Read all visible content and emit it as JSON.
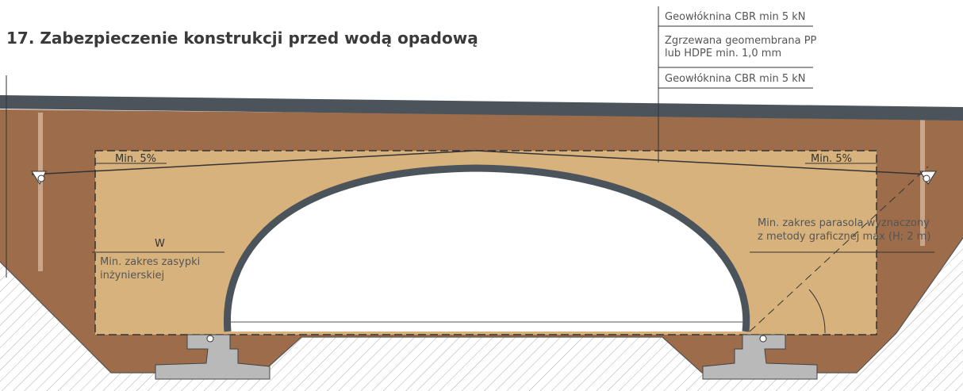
{
  "title": "17. Zabezpieczenie konstrukcji przed wodą opadową",
  "layers": [
    {
      "lines": [
        "Geowłóknina CBR min 5 kN"
      ]
    },
    {
      "lines": [
        "Zgrzewana geomembrana PP",
        "lub HDPE min. 1,0 mm"
      ]
    },
    {
      "lines": [
        "Geowłóknina CBR min 5 kN"
      ]
    }
  ],
  "annotations": {
    "slope_left": "Min. 5%",
    "slope_right": "Min. 5%",
    "width": "W",
    "backfill": [
      "Min. zakres zasypki",
      "inżynierskiej"
    ],
    "umbrella": [
      "Min. zakres parasola wyznaczony",
      "z metody graficznej max (H; 2 m)"
    ]
  }
}
